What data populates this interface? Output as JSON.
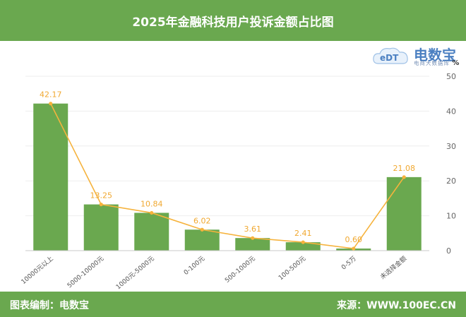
{
  "header": {
    "title": "2025年金融科技用户投诉金额占比图"
  },
  "footer": {
    "editor": "图表编制：电数宝",
    "source": "来源：WWW.100EC.CN"
  },
  "logo": {
    "mark": "eDT",
    "name": "电数宝",
    "subtitle": "电商大数据库",
    "unit_symbol": "%"
  },
  "colors": {
    "bar": "#6aa84f",
    "line": "#f6b33d",
    "label": "#f0a830",
    "header": "#6aa84f"
  },
  "chart_data": {
    "type": "bar",
    "categories": [
      "10000元以上",
      "5000-10000元",
      "1000元-5000元",
      "0-100元",
      "500-1000元",
      "100-500元",
      "0-5万",
      "未选择金额"
    ],
    "series": [
      {
        "type": "bar",
        "values": [
          42.17,
          13.25,
          10.84,
          6.02,
          3.61,
          2.41,
          0.6,
          21.08
        ]
      },
      {
        "type": "line",
        "values": [
          42.17,
          13.25,
          10.84,
          6.02,
          3.61,
          2.41,
          0.6,
          21.08
        ]
      }
    ],
    "data_labels": [
      "42.17",
      "13.25",
      "10.84",
      "6.02",
      "3.61",
      "2.41",
      "0.60",
      "21.08"
    ],
    "y_ticks": [
      "0",
      "10",
      "20",
      "30",
      "40",
      "50"
    ],
    "ylim": [
      0,
      50
    ],
    "y_axis_position": "right",
    "grid": true
  }
}
